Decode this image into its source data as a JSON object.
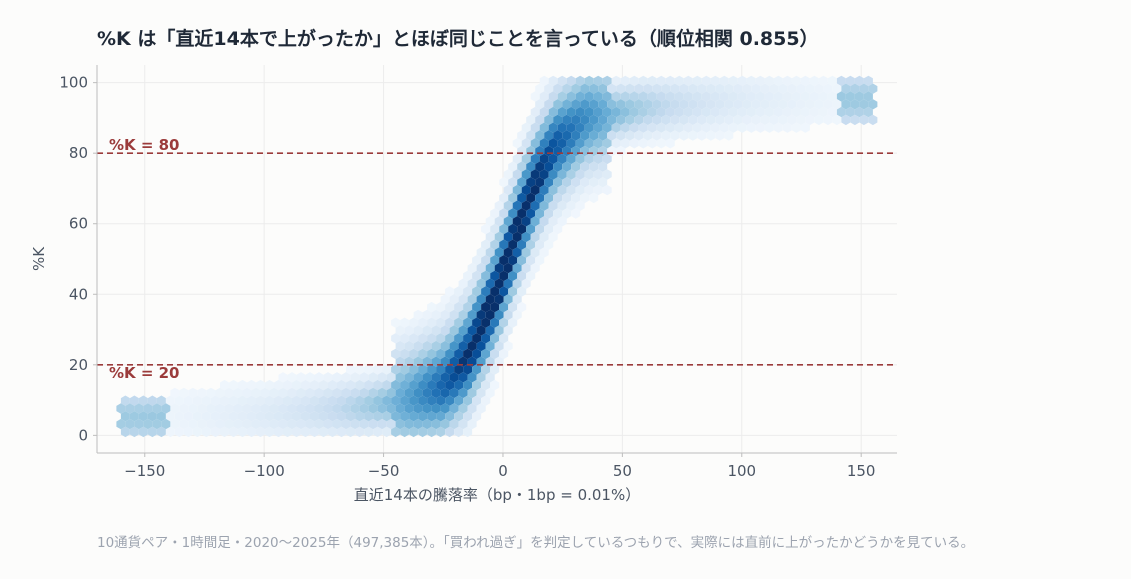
{
  "title": "%K は「直近14本で上がったか」とほぼ同じことを言っている（順位相関 0.855）",
  "caption": "10通貨ペア・1時間足・2020〜2025年（497,385本）。「買われ過ぎ」を判定しているつもりで、実際には直前に上がったかどうかを見ている。",
  "chart_data": {
    "type": "heatmap",
    "subtype": "hexbin",
    "xlabel": "直近14本の騰落率（bp・1bp = 0.01%）",
    "ylabel": "%K",
    "xlim": [
      -170,
      165
    ],
    "ylim": [
      -5,
      105
    ],
    "xticks": [
      -150,
      -100,
      -50,
      0,
      50,
      100,
      150
    ],
    "xtick_labels": [
      "−150",
      "−100",
      "−50",
      "0",
      "50",
      "100",
      "150"
    ],
    "yticks": [
      0,
      20,
      40,
      60,
      80,
      100
    ],
    "ytick_labels": [
      "0",
      "20",
      "40",
      "60",
      "80",
      "100"
    ],
    "colormap": "Blues",
    "rank_correlation": 0.855,
    "n_bars": 497385,
    "grid": true,
    "density_ridge": [
      {
        "x": -150,
        "y": 5
      },
      {
        "x": -100,
        "y": 6
      },
      {
        "x": -60,
        "y": 8
      },
      {
        "x": -40,
        "y": 10
      },
      {
        "x": -25,
        "y": 14
      },
      {
        "x": -15,
        "y": 22
      },
      {
        "x": -8,
        "y": 32
      },
      {
        "x": -2,
        "y": 42
      },
      {
        "x": 3,
        "y": 52
      },
      {
        "x": 8,
        "y": 62
      },
      {
        "x": 14,
        "y": 72
      },
      {
        "x": 22,
        "y": 82
      },
      {
        "x": 35,
        "y": 90
      },
      {
        "x": 60,
        "y": 93
      },
      {
        "x": 100,
        "y": 95
      },
      {
        "x": 150,
        "y": 95
      }
    ],
    "reference_lines": [
      {
        "y": 80,
        "label": "%K = 80",
        "color": "#9b3b3b",
        "style": "dashed"
      },
      {
        "y": 20,
        "label": "%K = 20",
        "color": "#9b3b3b",
        "style": "dashed"
      }
    ]
  }
}
